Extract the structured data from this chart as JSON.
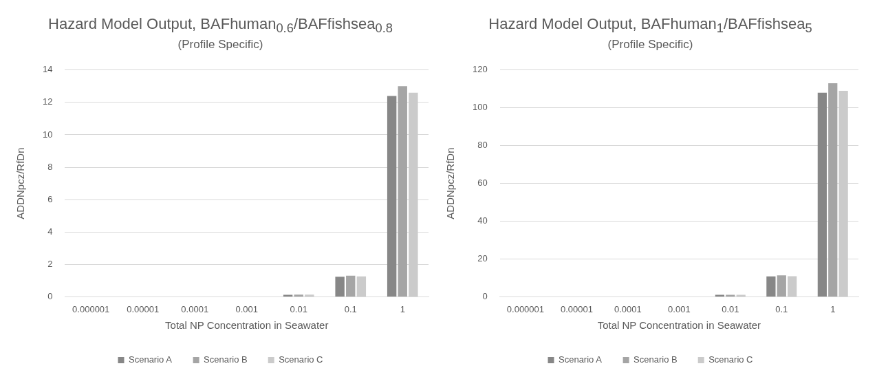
{
  "chart_data": [
    {
      "type": "bar",
      "title": "Hazard Model Output, BAFhuman$_{0.6}$/BAFfishsea$_{0.8}$",
      "subtitle": "(Profile Specific)",
      "xlabel": "Total NP Concentration in Seawater",
      "ylabel": "ADDNpcz/RfDn",
      "categories": [
        "0.000001",
        "0.00001",
        "0.0001",
        "0.001",
        "0.01",
        "0.1",
        "1"
      ],
      "series": [
        {
          "name": "Scenario A",
          "color": "#878787",
          "values": [
            0,
            0,
            0,
            0,
            0.12,
            1.24,
            12.4
          ]
        },
        {
          "name": "Scenario B",
          "color": "#a5a5a5",
          "values": [
            0,
            0,
            0,
            0,
            0.13,
            1.3,
            13.0
          ]
        },
        {
          "name": "Scenario C",
          "color": "#cbcbcb",
          "values": [
            0,
            0,
            0,
            0,
            0.13,
            1.26,
            12.6
          ]
        }
      ],
      "ylim": [
        0,
        14
      ],
      "yticks": [
        0,
        2,
        4,
        6,
        8,
        10,
        12,
        14
      ],
      "grid": "y",
      "legend": "bottom"
    },
    {
      "type": "bar",
      "title": "Hazard Model Output, BAFhuman$_{1}$/BAFfishsea$_{5}$",
      "subtitle": "(Profile Specific)",
      "xlabel": "Total NP Concentration in Seawater",
      "ylabel": "ADDNpcz/RfDn",
      "categories": [
        "0.000001",
        "0.00001",
        "0.0001",
        "0.001",
        "0.01",
        "0.1",
        "1"
      ],
      "series": [
        {
          "name": "Scenario A",
          "color": "#878787",
          "values": [
            0,
            0,
            0,
            0,
            1.1,
            10.8,
            108
          ]
        },
        {
          "name": "Scenario B",
          "color": "#a5a5a5",
          "values": [
            0,
            0,
            0,
            0,
            1.1,
            11.3,
            113
          ]
        },
        {
          "name": "Scenario C",
          "color": "#cbcbcb",
          "values": [
            0,
            0,
            0,
            0,
            1.1,
            10.9,
            109
          ]
        }
      ],
      "ylim": [
        0,
        120
      ],
      "yticks": [
        0,
        20,
        40,
        60,
        80,
        100,
        120
      ],
      "grid": "y",
      "legend": "bottom"
    }
  ]
}
